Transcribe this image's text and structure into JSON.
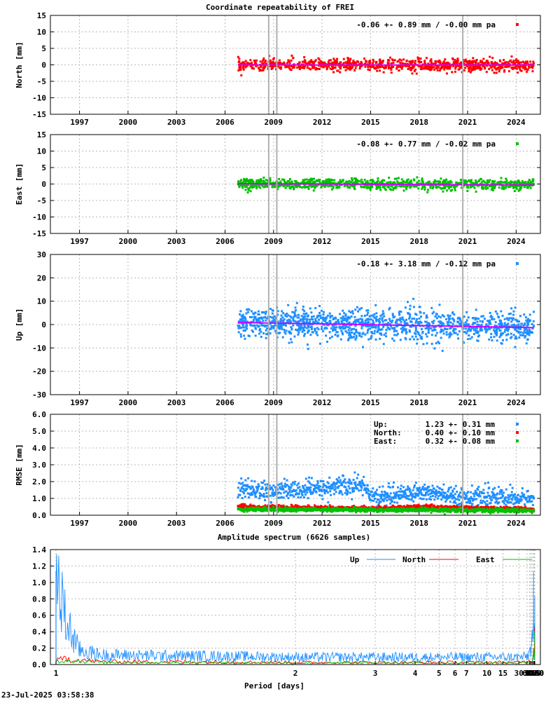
{
  "figure_title": "Coordinate repeatability of FREI",
  "spectrum_title": "Amplitude spectrum (6626 samples)",
  "footer_timestamp": "23-Jul-2025 03:58:38",
  "colors": {
    "north": "#ff0000",
    "east": "#00c000",
    "up": "#1e8fff",
    "trend": "#cc00ff",
    "event_line": "#b0b0b0",
    "grid": "#b8b8b8"
  },
  "chart_data": [
    {
      "id": "north",
      "type": "scatter",
      "ylabel": "North [mm]",
      "ylim": [
        -15,
        15
      ],
      "yticks": [
        -15,
        -10,
        -5,
        0,
        5,
        10,
        15
      ],
      "xlim": [
        1995.2,
        2025.5
      ],
      "xticks": [
        1997,
        2000,
        2003,
        2006,
        2009,
        2012,
        2015,
        2018,
        2021,
        2024
      ],
      "legend": "-0.06 +- 0.89 mm / -0.00 mm pa",
      "legend_position": "top-right",
      "grid": true,
      "data_span": [
        2006.8,
        2025.1
      ],
      "scatter_sigma": 0.9,
      "trend": [
        [
          2006.8,
          -0.06
        ],
        [
          2025.1,
          -0.06
        ]
      ],
      "event_lines": [
        2008.7,
        2009.2,
        2020.7
      ]
    },
    {
      "id": "east",
      "type": "scatter",
      "ylabel": "East [mm]",
      "ylim": [
        -15,
        15
      ],
      "yticks": [
        -15,
        -10,
        -5,
        0,
        5,
        10,
        15
      ],
      "xlim": [
        1995.2,
        2025.5
      ],
      "xticks": [
        1997,
        2000,
        2003,
        2006,
        2009,
        2012,
        2015,
        2018,
        2021,
        2024
      ],
      "legend": "-0.08 +- 0.77 mm / -0.02 mm pa",
      "legend_position": "top-right",
      "grid": true,
      "data_span": [
        2006.8,
        2025.1
      ],
      "scatter_sigma": 0.8,
      "trend": [
        [
          2006.8,
          0.1
        ],
        [
          2025.1,
          -0.3
        ]
      ],
      "event_lines": [
        2008.7,
        2009.2,
        2020.7
      ]
    },
    {
      "id": "up",
      "type": "scatter",
      "ylabel": "Up [mm]",
      "ylim": [
        -30,
        30
      ],
      "yticks": [
        -30,
        -20,
        -10,
        0,
        10,
        20,
        30
      ],
      "xlim": [
        1995.2,
        2025.5
      ],
      "xticks": [
        1997,
        2000,
        2003,
        2006,
        2009,
        2012,
        2015,
        2018,
        2021,
        2024
      ],
      "legend": "-0.18 +- 3.18 mm / -0.12 mm pa",
      "legend_position": "top-right",
      "grid": true,
      "data_span": [
        2006.8,
        2025.1
      ],
      "scatter_sigma": 3.2,
      "trend": [
        [
          2006.8,
          0.9
        ],
        [
          2025.1,
          -1.3
        ]
      ],
      "event_lines": [
        2008.7,
        2009.2,
        2020.7
      ]
    },
    {
      "id": "rmse",
      "type": "scatter",
      "ylabel": "RMSE [mm]",
      "ylim": [
        0,
        6
      ],
      "yticks": [
        "0.0",
        "1.0",
        "2.0",
        "3.0",
        "4.0",
        "5.0",
        "6.0"
      ],
      "xlim": [
        1995.2,
        2025.5
      ],
      "xticks": [
        1997,
        2000,
        2003,
        2006,
        2009,
        2012,
        2015,
        2018,
        2021,
        2024
      ],
      "legend_position": "top-right",
      "grid": true,
      "legend_rows": [
        {
          "name": "Up:",
          "value": "1.23 +- 0.31 mm",
          "series": "up"
        },
        {
          "name": "North:",
          "value": "0.40 +- 0.10 mm",
          "series": "north"
        },
        {
          "name": "East:",
          "value": "0.32 +- 0.08 mm",
          "series": "east"
        }
      ],
      "series": [
        {
          "name": "Up",
          "levels": [
            [
              2006.8,
              1.6
            ],
            [
              2009.0,
              1.4
            ],
            [
              2011.0,
              1.5
            ],
            [
              2013.0,
              1.7
            ],
            [
              2014.7,
              1.8
            ],
            [
              2015.0,
              1.05
            ],
            [
              2017.0,
              1.25
            ],
            [
              2018.5,
              1.4
            ],
            [
              2020.0,
              1.1
            ],
            [
              2022.0,
              1.05
            ],
            [
              2025.1,
              0.95
            ]
          ]
        },
        {
          "name": "North",
          "levels": [
            [
              2006.8,
              0.5
            ],
            [
              2010.0,
              0.45
            ],
            [
              2015.0,
              0.4
            ],
            [
              2018.5,
              0.5
            ],
            [
              2025.1,
              0.35
            ]
          ]
        },
        {
          "name": "East",
          "levels": [
            [
              2006.8,
              0.35
            ],
            [
              2015.0,
              0.32
            ],
            [
              2025.1,
              0.28
            ]
          ]
        }
      ],
      "event_lines": [
        2008.7,
        2009.2,
        2020.7
      ]
    },
    {
      "id": "spectrum",
      "type": "line",
      "xlabel": "Period [days]",
      "xscale": "reciprocal",
      "ylim": [
        0,
        1.4
      ],
      "yticks": [
        "0.0",
        "0.2",
        "0.4",
        "0.6",
        "0.8",
        "1.0",
        "1.2",
        "1.4"
      ],
      "xticks": [
        1,
        2,
        3,
        4,
        5,
        6,
        7,
        10,
        15,
        30,
        61,
        91,
        122,
        183,
        365,
        730,
        2190,
        4380,
        8760
      ],
      "legend_position": "top-right",
      "grid": true,
      "series": [
        {
          "name": "Up",
          "x": [
            1,
            1.02,
            1.05,
            1.1,
            1.3,
            2,
            3,
            5,
            10,
            20,
            40,
            61,
            91,
            122,
            150,
            183,
            250,
            300,
            330,
            350,
            365,
            380,
            420,
            500,
            600,
            730,
            900,
            1100,
            1500,
            2190,
            3000,
            4380,
            6600
          ],
          "y": [
            1.14,
            0.6,
            0.2,
            0.13,
            0.12,
            0.1,
            0.1,
            0.1,
            0.1,
            0.1,
            0.1,
            0.11,
            0.17,
            0.25,
            0.3,
            0.32,
            0.28,
            0.35,
            0.5,
            0.8,
            1.13,
            0.55,
            0.42,
            0.5,
            0.38,
            0.48,
            0.3,
            0.45,
            0.25,
            0.35,
            0.5,
            0.05,
            0.83
          ]
        },
        {
          "name": "North",
          "x": [
            1,
            1.02,
            1.1,
            2,
            5,
            10,
            30,
            61,
            91,
            183,
            300,
            365,
            400,
            500,
            730,
            1000,
            2190,
            3000,
            4380,
            6600
          ],
          "y": [
            0.05,
            0.08,
            0.04,
            0.03,
            0.03,
            0.03,
            0.03,
            0.04,
            0.05,
            0.07,
            0.12,
            0.2,
            0.12,
            0.15,
            0.08,
            0.2,
            0.27,
            0.3,
            0.45,
            0.15
          ]
        },
        {
          "name": "East",
          "x": [
            1,
            1.02,
            1.1,
            2,
            5,
            10,
            30,
            61,
            91,
            183,
            300,
            365,
            400,
            500,
            730,
            1000,
            2190,
            3000,
            4380,
            6600
          ],
          "y": [
            0.04,
            0.06,
            0.03,
            0.02,
            0.02,
            0.02,
            0.02,
            0.03,
            0.04,
            0.06,
            0.1,
            0.18,
            0.1,
            0.12,
            0.06,
            0.12,
            0.15,
            0.1,
            0.3,
            0.4
          ]
        }
      ]
    }
  ]
}
